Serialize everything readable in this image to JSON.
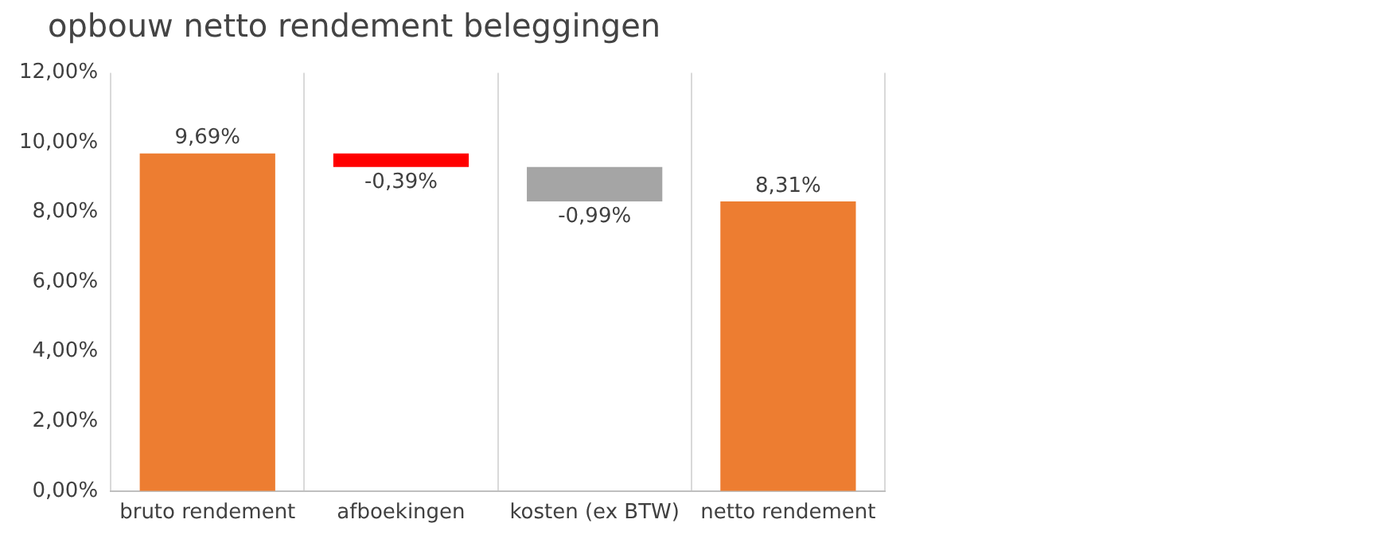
{
  "chart_data": {
    "type": "bar",
    "title": "opbouw netto rendement beleggingen",
    "categories": [
      "bruto rendement",
      "afboekingen",
      "kosten (ex BTW)",
      "netto rendement"
    ],
    "values": [
      9.69,
      -0.39,
      -0.99,
      8.31
    ],
    "base": [
      0,
      9.69,
      9.3,
      0
    ],
    "colors": [
      "#ed7d31",
      "#ff0000",
      "#a5a5a5",
      "#ed7d31"
    ],
    "value_labels": [
      "9,69%",
      "-0,39%",
      "-0,99%",
      "8,31%"
    ],
    "ylim": [
      0,
      12
    ],
    "yticks": [
      {
        "value": 0,
        "label": "0,00%"
      },
      {
        "value": 2,
        "label": "2,00%"
      },
      {
        "value": 4,
        "label": "4,00%"
      },
      {
        "value": 6,
        "label": "6,00%"
      },
      {
        "value": 8,
        "label": "8,00%"
      },
      {
        "value": 10,
        "label": "10,00%"
      },
      {
        "value": 12,
        "label": "12,00%"
      }
    ],
    "grid": "x",
    "legend": false
  }
}
